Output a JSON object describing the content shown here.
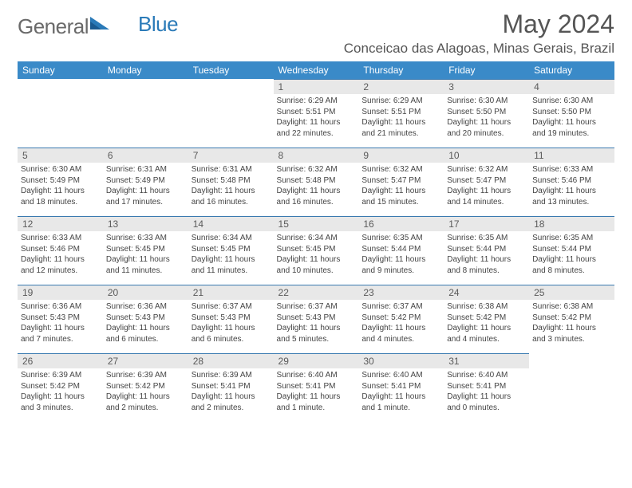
{
  "logo": {
    "text_main": "General",
    "text_accent": "Blue"
  },
  "title": "May 2024",
  "location": "Conceicao das Alagoas, Minas Gerais, Brazil",
  "header_bg": "#3a8ac8",
  "daynum_bg": "#e8e8e8",
  "border_color": "#3a7ab0",
  "weekdays": [
    "Sunday",
    "Monday",
    "Tuesday",
    "Wednesday",
    "Thursday",
    "Friday",
    "Saturday"
  ],
  "weeks": [
    [
      null,
      null,
      null,
      {
        "n": "1",
        "sr": "6:29 AM",
        "ss": "5:51 PM",
        "dl": "11 hours and 22 minutes."
      },
      {
        "n": "2",
        "sr": "6:29 AM",
        "ss": "5:51 PM",
        "dl": "11 hours and 21 minutes."
      },
      {
        "n": "3",
        "sr": "6:30 AM",
        "ss": "5:50 PM",
        "dl": "11 hours and 20 minutes."
      },
      {
        "n": "4",
        "sr": "6:30 AM",
        "ss": "5:50 PM",
        "dl": "11 hours and 19 minutes."
      }
    ],
    [
      {
        "n": "5",
        "sr": "6:30 AM",
        "ss": "5:49 PM",
        "dl": "11 hours and 18 minutes."
      },
      {
        "n": "6",
        "sr": "6:31 AM",
        "ss": "5:49 PM",
        "dl": "11 hours and 17 minutes."
      },
      {
        "n": "7",
        "sr": "6:31 AM",
        "ss": "5:48 PM",
        "dl": "11 hours and 16 minutes."
      },
      {
        "n": "8",
        "sr": "6:32 AM",
        "ss": "5:48 PM",
        "dl": "11 hours and 16 minutes."
      },
      {
        "n": "9",
        "sr": "6:32 AM",
        "ss": "5:47 PM",
        "dl": "11 hours and 15 minutes."
      },
      {
        "n": "10",
        "sr": "6:32 AM",
        "ss": "5:47 PM",
        "dl": "11 hours and 14 minutes."
      },
      {
        "n": "11",
        "sr": "6:33 AM",
        "ss": "5:46 PM",
        "dl": "11 hours and 13 minutes."
      }
    ],
    [
      {
        "n": "12",
        "sr": "6:33 AM",
        "ss": "5:46 PM",
        "dl": "11 hours and 12 minutes."
      },
      {
        "n": "13",
        "sr": "6:33 AM",
        "ss": "5:45 PM",
        "dl": "11 hours and 11 minutes."
      },
      {
        "n": "14",
        "sr": "6:34 AM",
        "ss": "5:45 PM",
        "dl": "11 hours and 11 minutes."
      },
      {
        "n": "15",
        "sr": "6:34 AM",
        "ss": "5:45 PM",
        "dl": "11 hours and 10 minutes."
      },
      {
        "n": "16",
        "sr": "6:35 AM",
        "ss": "5:44 PM",
        "dl": "11 hours and 9 minutes."
      },
      {
        "n": "17",
        "sr": "6:35 AM",
        "ss": "5:44 PM",
        "dl": "11 hours and 8 minutes."
      },
      {
        "n": "18",
        "sr": "6:35 AM",
        "ss": "5:44 PM",
        "dl": "11 hours and 8 minutes."
      }
    ],
    [
      {
        "n": "19",
        "sr": "6:36 AM",
        "ss": "5:43 PM",
        "dl": "11 hours and 7 minutes."
      },
      {
        "n": "20",
        "sr": "6:36 AM",
        "ss": "5:43 PM",
        "dl": "11 hours and 6 minutes."
      },
      {
        "n": "21",
        "sr": "6:37 AM",
        "ss": "5:43 PM",
        "dl": "11 hours and 6 minutes."
      },
      {
        "n": "22",
        "sr": "6:37 AM",
        "ss": "5:43 PM",
        "dl": "11 hours and 5 minutes."
      },
      {
        "n": "23",
        "sr": "6:37 AM",
        "ss": "5:42 PM",
        "dl": "11 hours and 4 minutes."
      },
      {
        "n": "24",
        "sr": "6:38 AM",
        "ss": "5:42 PM",
        "dl": "11 hours and 4 minutes."
      },
      {
        "n": "25",
        "sr": "6:38 AM",
        "ss": "5:42 PM",
        "dl": "11 hours and 3 minutes."
      }
    ],
    [
      {
        "n": "26",
        "sr": "6:39 AM",
        "ss": "5:42 PM",
        "dl": "11 hours and 3 minutes."
      },
      {
        "n": "27",
        "sr": "6:39 AM",
        "ss": "5:42 PM",
        "dl": "11 hours and 2 minutes."
      },
      {
        "n": "28",
        "sr": "6:39 AM",
        "ss": "5:41 PM",
        "dl": "11 hours and 2 minutes."
      },
      {
        "n": "29",
        "sr": "6:40 AM",
        "ss": "5:41 PM",
        "dl": "11 hours and 1 minute."
      },
      {
        "n": "30",
        "sr": "6:40 AM",
        "ss": "5:41 PM",
        "dl": "11 hours and 1 minute."
      },
      {
        "n": "31",
        "sr": "6:40 AM",
        "ss": "5:41 PM",
        "dl": "11 hours and 0 minutes."
      },
      null
    ]
  ]
}
